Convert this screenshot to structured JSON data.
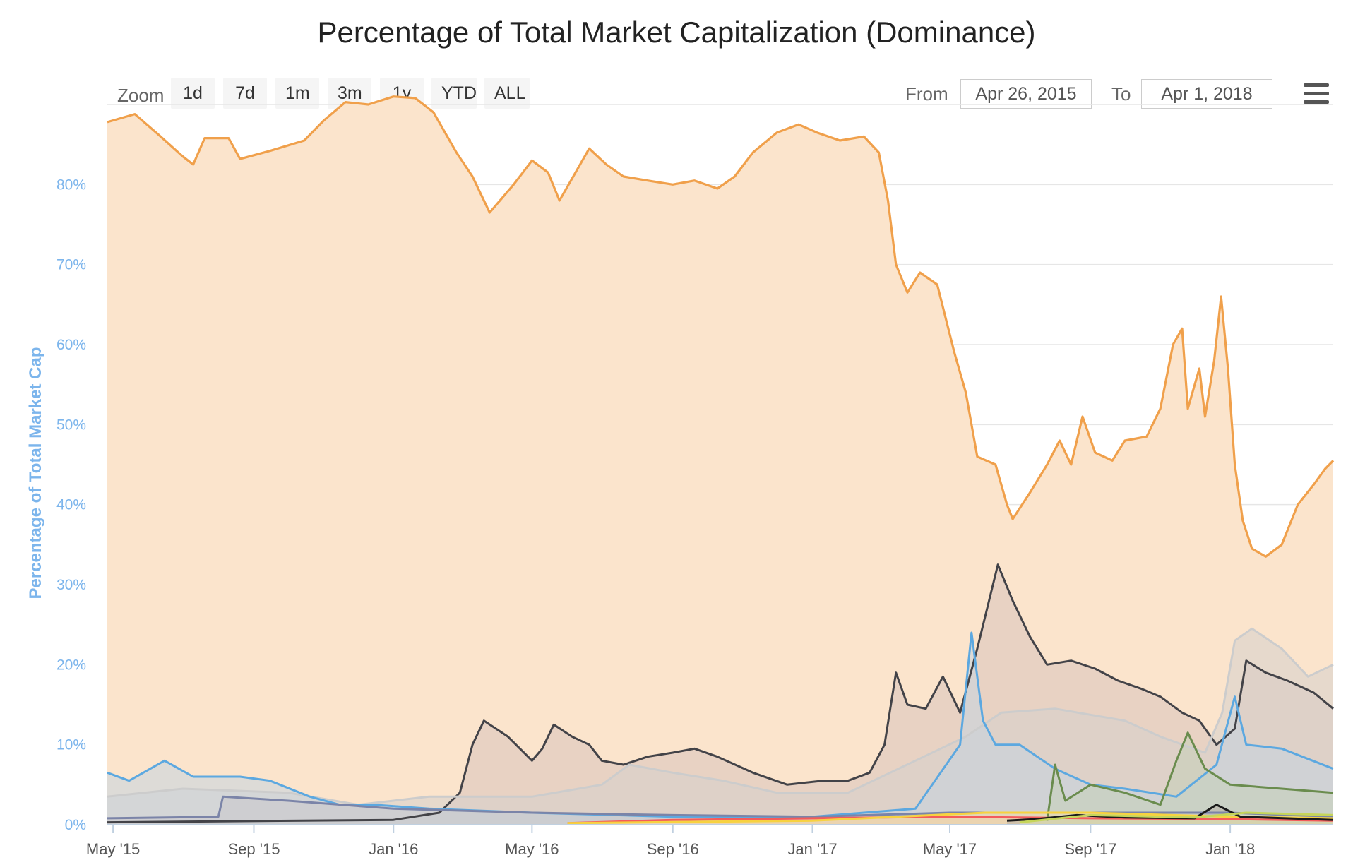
{
  "title": "Percentage of Total Market Capitalization (Dominance)",
  "zoom": {
    "label": "Zoom",
    "buttons": [
      "1d",
      "7d",
      "1m",
      "3m",
      "1y",
      "YTD",
      "ALL"
    ]
  },
  "range": {
    "from_label": "From",
    "from_value": "Apr 26, 2015",
    "to_label": "To",
    "to_value": "Apr 1, 2018"
  },
  "menu_icon": "hamburger-menu-icon",
  "chart_data": {
    "type": "area",
    "title": "Percentage of Total Market Capitalization (Dominance)",
    "ylabel": "Percentage of Total Market Cap",
    "xlabel": "",
    "ylim": [
      0,
      90
    ],
    "yticks": [
      0,
      10,
      20,
      30,
      40,
      50,
      60,
      70,
      80
    ],
    "ytick_labels": [
      "0%",
      "10%",
      "20%",
      "30%",
      "40%",
      "50%",
      "60%",
      "70%",
      "80%"
    ],
    "x_domain": [
      "2015-04-26",
      "2018-04-01"
    ],
    "xticks": [
      {
        "date": "2015-05-01",
        "label": "May '15"
      },
      {
        "date": "2015-09-01",
        "label": "Sep '15"
      },
      {
        "date": "2016-01-01",
        "label": "Jan '16"
      },
      {
        "date": "2016-05-01",
        "label": "May '16"
      },
      {
        "date": "2016-09-01",
        "label": "Sep '16"
      },
      {
        "date": "2017-01-01",
        "label": "Jan '17"
      },
      {
        "date": "2017-05-01",
        "label": "May '17"
      },
      {
        "date": "2017-09-01",
        "label": "Sep '17"
      },
      {
        "date": "2018-01-01",
        "label": "Jan '18"
      }
    ],
    "grid": true,
    "legend": "none",
    "series": [
      {
        "color": "#f0a04b",
        "fill": "#fbe4cc",
        "points": [
          [
            "2015-04-26",
            87.8
          ],
          [
            "2015-05-20",
            88.8
          ],
          [
            "2015-06-10",
            86.2
          ],
          [
            "2015-07-01",
            83.5
          ],
          [
            "2015-07-10",
            82.5
          ],
          [
            "2015-07-20",
            85.8
          ],
          [
            "2015-08-10",
            85.8
          ],
          [
            "2015-08-20",
            83.2
          ],
          [
            "2015-09-15",
            84.2
          ],
          [
            "2015-10-15",
            85.5
          ],
          [
            "2015-11-01",
            88.0
          ],
          [
            "2015-11-20",
            90.3
          ],
          [
            "2015-12-10",
            90.0
          ],
          [
            "2016-01-01",
            91.0
          ],
          [
            "2016-01-20",
            90.8
          ],
          [
            "2016-02-05",
            89.0
          ],
          [
            "2016-02-25",
            84.0
          ],
          [
            "2016-03-10",
            81.0
          ],
          [
            "2016-03-25",
            76.5
          ],
          [
            "2016-04-15",
            80.0
          ],
          [
            "2016-05-01",
            83.0
          ],
          [
            "2016-05-15",
            81.5
          ],
          [
            "2016-05-25",
            78.0
          ],
          [
            "2016-06-10",
            82.0
          ],
          [
            "2016-06-20",
            84.5
          ],
          [
            "2016-07-05",
            82.5
          ],
          [
            "2016-07-20",
            81.0
          ],
          [
            "2016-08-10",
            80.5
          ],
          [
            "2016-09-01",
            80.0
          ],
          [
            "2016-09-20",
            80.5
          ],
          [
            "2016-10-10",
            79.5
          ],
          [
            "2016-10-25",
            81.0
          ],
          [
            "2016-11-10",
            84.0
          ],
          [
            "2016-12-01",
            86.5
          ],
          [
            "2016-12-20",
            87.5
          ],
          [
            "2017-01-05",
            86.5
          ],
          [
            "2017-01-25",
            85.5
          ],
          [
            "2017-02-15",
            86.0
          ],
          [
            "2017-02-28",
            84.0
          ],
          [
            "2017-03-08",
            78.0
          ],
          [
            "2017-03-15",
            70.0
          ],
          [
            "2017-03-25",
            66.5
          ],
          [
            "2017-04-05",
            69.0
          ],
          [
            "2017-04-20",
            67.5
          ],
          [
            "2017-05-05",
            59.0
          ],
          [
            "2017-05-15",
            54.0
          ],
          [
            "2017-05-25",
            46.0
          ],
          [
            "2017-06-10",
            45.0
          ],
          [
            "2017-06-20",
            40.0
          ],
          [
            "2017-06-25",
            38.2
          ],
          [
            "2017-07-10",
            41.5
          ],
          [
            "2017-07-25",
            45.0
          ],
          [
            "2017-08-05",
            48.0
          ],
          [
            "2017-08-15",
            45.0
          ],
          [
            "2017-08-25",
            51.0
          ],
          [
            "2017-09-05",
            46.5
          ],
          [
            "2017-09-20",
            45.5
          ],
          [
            "2017-10-01",
            48.0
          ],
          [
            "2017-10-20",
            48.5
          ],
          [
            "2017-11-01",
            52.0
          ],
          [
            "2017-11-12",
            60.0
          ],
          [
            "2017-11-20",
            62.0
          ],
          [
            "2017-11-25",
            52.0
          ],
          [
            "2017-12-05",
            57.0
          ],
          [
            "2017-12-10",
            51.0
          ],
          [
            "2017-12-18",
            58.0
          ],
          [
            "2017-12-24",
            66.0
          ],
          [
            "2017-12-30",
            57.0
          ],
          [
            "2018-01-05",
            45.0
          ],
          [
            "2018-01-12",
            38.0
          ],
          [
            "2018-01-20",
            34.5
          ],
          [
            "2018-02-01",
            33.5
          ],
          [
            "2018-02-15",
            35.0
          ],
          [
            "2018-03-01",
            40.0
          ],
          [
            "2018-03-15",
            42.5
          ],
          [
            "2018-03-25",
            44.5
          ],
          [
            "2018-04-01",
            45.5
          ]
        ]
      },
      {
        "color": "#434348",
        "fill": "#d9c2bb",
        "points": [
          [
            "2015-04-26",
            0.3
          ],
          [
            "2016-01-01",
            0.6
          ],
          [
            "2016-02-10",
            1.5
          ],
          [
            "2016-02-28",
            4.0
          ],
          [
            "2016-03-10",
            10.0
          ],
          [
            "2016-03-20",
            13.0
          ],
          [
            "2016-04-10",
            11.0
          ],
          [
            "2016-05-01",
            8.0
          ],
          [
            "2016-05-10",
            9.5
          ],
          [
            "2016-05-20",
            12.5
          ],
          [
            "2016-06-05",
            11.0
          ],
          [
            "2016-06-20",
            10.0
          ],
          [
            "2016-07-01",
            8.0
          ],
          [
            "2016-07-20",
            7.5
          ],
          [
            "2016-08-10",
            8.5
          ],
          [
            "2016-09-01",
            9.0
          ],
          [
            "2016-09-20",
            9.5
          ],
          [
            "2016-10-10",
            8.5
          ],
          [
            "2016-11-10",
            6.5
          ],
          [
            "2016-12-10",
            5.0
          ],
          [
            "2017-01-10",
            5.5
          ],
          [
            "2017-02-01",
            5.5
          ],
          [
            "2017-02-20",
            6.5
          ],
          [
            "2017-03-05",
            10.0
          ],
          [
            "2017-03-15",
            19.0
          ],
          [
            "2017-03-25",
            15.0
          ],
          [
            "2017-04-10",
            14.5
          ],
          [
            "2017-04-25",
            18.5
          ],
          [
            "2017-05-10",
            14.0
          ],
          [
            "2017-05-25",
            22.0
          ],
          [
            "2017-06-12",
            32.5
          ],
          [
            "2017-06-25",
            28.0
          ],
          [
            "2017-07-10",
            23.5
          ],
          [
            "2017-07-25",
            20.0
          ],
          [
            "2017-08-15",
            20.5
          ],
          [
            "2017-09-05",
            19.5
          ],
          [
            "2017-09-25",
            18.0
          ],
          [
            "2017-10-15",
            17.0
          ],
          [
            "2017-11-01",
            16.0
          ],
          [
            "2017-11-20",
            14.0
          ],
          [
            "2017-12-05",
            13.0
          ],
          [
            "2017-12-20",
            10.0
          ],
          [
            "2018-01-05",
            12.0
          ],
          [
            "2018-01-15",
            20.5
          ],
          [
            "2018-02-01",
            19.0
          ],
          [
            "2018-02-20",
            18.0
          ],
          [
            "2018-03-15",
            16.5
          ],
          [
            "2018-04-01",
            14.5
          ]
        ]
      },
      {
        "color": "#cccccc",
        "fill": "#d6d0cc",
        "points": [
          [
            "2015-04-26",
            3.5
          ],
          [
            "2015-07-01",
            4.5
          ],
          [
            "2015-10-01",
            4.0
          ],
          [
            "2015-12-01",
            2.5
          ],
          [
            "2016-02-01",
            3.5
          ],
          [
            "2016-05-01",
            3.5
          ],
          [
            "2016-07-01",
            5.0
          ],
          [
            "2016-07-25",
            7.5
          ],
          [
            "2016-09-01",
            6.5
          ],
          [
            "2016-10-15",
            5.5
          ],
          [
            "2016-12-01",
            4.0
          ],
          [
            "2017-02-01",
            4.0
          ],
          [
            "2017-04-01",
            8.0
          ],
          [
            "2017-05-15",
            11.0
          ],
          [
            "2017-06-15",
            14.0
          ],
          [
            "2017-08-01",
            14.5
          ],
          [
            "2017-10-01",
            13.0
          ],
          [
            "2017-11-01",
            11.0
          ],
          [
            "2017-12-10",
            9.0
          ],
          [
            "2017-12-25",
            14.0
          ],
          [
            "2018-01-05",
            23.0
          ],
          [
            "2018-01-20",
            24.5
          ],
          [
            "2018-02-15",
            22.0
          ],
          [
            "2018-03-10",
            18.5
          ],
          [
            "2018-04-01",
            20.0
          ]
        ]
      },
      {
        "color": "#5ca8e0",
        "fill": "#c4d4e0",
        "points": [
          [
            "2015-04-26",
            6.5
          ],
          [
            "2015-05-15",
            5.5
          ],
          [
            "2015-06-15",
            8.0
          ],
          [
            "2015-07-10",
            6.0
          ],
          [
            "2015-08-20",
            6.0
          ],
          [
            "2015-09-15",
            5.5
          ],
          [
            "2015-10-20",
            3.5
          ],
          [
            "2015-11-15",
            2.5
          ],
          [
            "2015-12-15",
            2.5
          ],
          [
            "2016-02-01",
            2.0
          ],
          [
            "2016-05-01",
            1.5
          ],
          [
            "2016-09-01",
            1.0
          ],
          [
            "2017-01-01",
            1.0
          ],
          [
            "2017-04-01",
            2.0
          ],
          [
            "2017-05-10",
            10.0
          ],
          [
            "2017-05-20",
            24.0
          ],
          [
            "2017-05-30",
            13.0
          ],
          [
            "2017-06-10",
            10.0
          ],
          [
            "2017-07-01",
            10.0
          ],
          [
            "2017-08-01",
            7.0
          ],
          [
            "2017-09-01",
            5.0
          ],
          [
            "2017-10-01",
            4.5
          ],
          [
            "2017-11-15",
            3.5
          ],
          [
            "2017-12-20",
            7.5
          ],
          [
            "2018-01-05",
            16.0
          ],
          [
            "2018-01-15",
            10.0
          ],
          [
            "2018-02-15",
            9.5
          ],
          [
            "2018-04-01",
            7.0
          ]
        ]
      },
      {
        "color": "#6a8c4e",
        "fill": "#c4d0b8",
        "points": [
          [
            "2017-07-25",
            0.5
          ],
          [
            "2017-08-01",
            7.5
          ],
          [
            "2017-08-10",
            3.0
          ],
          [
            "2017-09-01",
            5.0
          ],
          [
            "2017-10-01",
            4.0
          ],
          [
            "2017-11-01",
            2.5
          ],
          [
            "2017-11-15",
            8.0
          ],
          [
            "2017-11-25",
            11.5
          ],
          [
            "2017-12-10",
            7.0
          ],
          [
            "2018-01-01",
            5.0
          ],
          [
            "2018-02-15",
            4.5
          ],
          [
            "2018-04-01",
            4.0
          ]
        ]
      },
      {
        "color": "#7b84a8",
        "fill": "#c8c8cc",
        "points": [
          [
            "2015-04-26",
            0.8
          ],
          [
            "2015-08-01",
            1.0
          ],
          [
            "2015-08-05",
            3.5
          ],
          [
            "2015-10-01",
            3.0
          ],
          [
            "2016-01-01",
            2.0
          ],
          [
            "2016-05-01",
            1.5
          ],
          [
            "2016-09-01",
            1.2
          ],
          [
            "2017-01-01",
            1.0
          ],
          [
            "2017-05-01",
            1.5
          ],
          [
            "2017-09-01",
            1.5
          ],
          [
            "2018-01-01",
            1.5
          ],
          [
            "2018-04-01",
            1.0
          ]
        ]
      },
      {
        "color": "#f45b5b",
        "fill": "#f0c0a8",
        "points": [
          [
            "2016-06-01",
            0.2
          ],
          [
            "2016-09-01",
            0.6
          ],
          [
            "2017-01-01",
            0.8
          ],
          [
            "2017-05-01",
            1.0
          ],
          [
            "2017-09-01",
            0.8
          ],
          [
            "2018-01-01",
            0.7
          ],
          [
            "2018-04-01",
            0.5
          ]
        ]
      },
      {
        "color": "#f7d240",
        "fill": "#f4e0a8",
        "points": [
          [
            "2016-06-01",
            0.2
          ],
          [
            "2017-01-01",
            0.5
          ],
          [
            "2017-06-01",
            1.5
          ],
          [
            "2017-09-01",
            1.5
          ],
          [
            "2018-01-01",
            1.0
          ],
          [
            "2018-04-01",
            0.8
          ]
        ]
      },
      {
        "color": "#1a1a1a",
        "fill": "#b8b0a8",
        "points": [
          [
            "2017-06-20",
            0.5
          ],
          [
            "2017-07-15",
            0.7
          ],
          [
            "2017-08-20",
            1.2
          ],
          [
            "2017-10-01",
            0.9
          ],
          [
            "2017-12-01",
            0.8
          ],
          [
            "2017-12-20",
            2.5
          ],
          [
            "2018-01-10",
            1.0
          ],
          [
            "2018-04-01",
            0.6
          ]
        ]
      },
      {
        "color": "#c5d55a",
        "fill": "#dde2b0",
        "points": [
          [
            "2017-07-01",
            0.3
          ],
          [
            "2017-09-01",
            1.2
          ],
          [
            "2017-12-01",
            0.9
          ],
          [
            "2018-01-15",
            1.5
          ],
          [
            "2018-04-01",
            1.2
          ]
        ]
      }
    ]
  }
}
